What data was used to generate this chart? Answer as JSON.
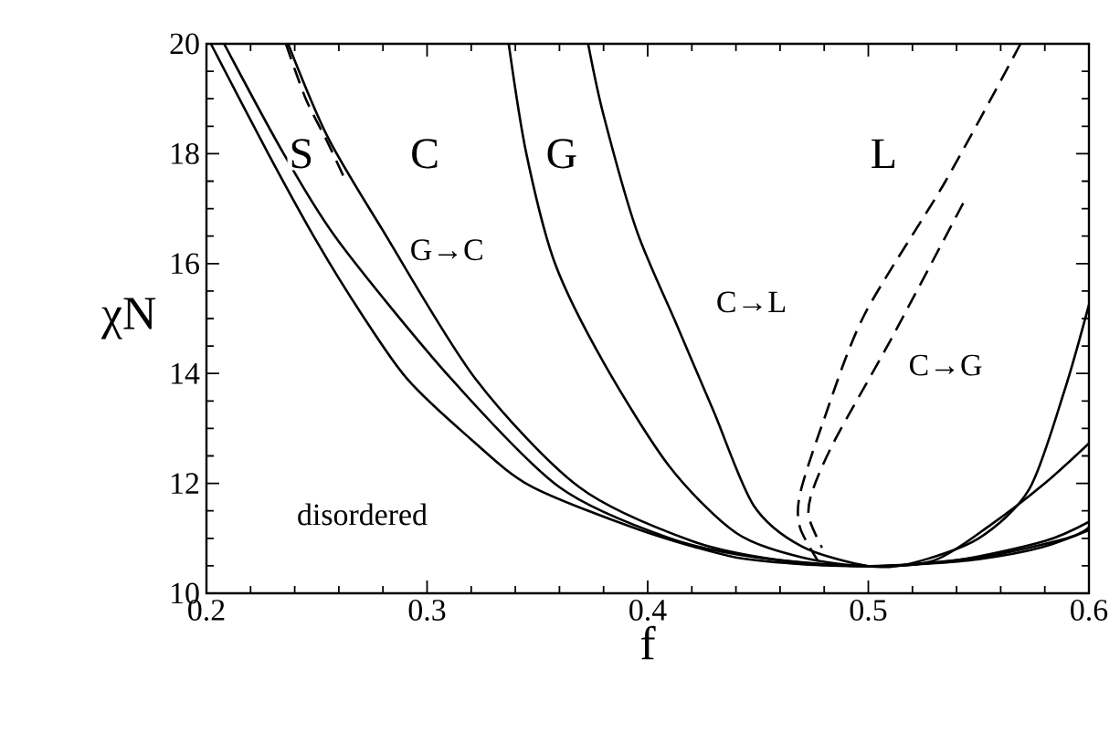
{
  "chart_data": {
    "type": "line",
    "xlabel": "f",
    "ylabel": "χN",
    "xlim": [
      0.2,
      0.6
    ],
    "ylim": [
      10,
      20
    ],
    "xticks": [
      0.2,
      0.3,
      0.4,
      0.5,
      0.6
    ],
    "yticks": [
      10,
      12,
      14,
      16,
      18,
      20
    ],
    "series": [
      {
        "color": "#000000",
        "line_style": "solid",
        "x": [
          0.202,
          0.228,
          0.25,
          0.27,
          0.291,
          0.32,
          0.347,
          0.396,
          0.438,
          0.47,
          0.5,
          0.52,
          0.55,
          0.578,
          0.6
        ],
        "values": [
          20,
          18,
          16.4,
          15.1,
          13.9,
          12.8,
          11.95,
          11.16,
          10.67,
          10.53,
          10.495,
          10.52,
          10.62,
          10.83,
          11.15
        ]
      },
      {
        "color": "#000000",
        "line_style": "solid",
        "x": [
          0.208,
          0.235,
          0.26,
          0.311,
          0.36,
          0.41,
          0.45,
          0.5,
          0.55,
          0.59,
          0.6
        ],
        "values": [
          20,
          18,
          16.4,
          13.9,
          11.93,
          11.0,
          10.65,
          10.495,
          10.65,
          11.0,
          11.2
        ]
      },
      {
        "color": "#000000",
        "line_style": "solid",
        "x": [
          0.237,
          0.255,
          0.28,
          0.322,
          0.369,
          0.42,
          0.46,
          0.5,
          0.54,
          0.58,
          0.6
        ],
        "values": [
          20,
          18.3,
          16.6,
          13.9,
          11.93,
          10.95,
          10.6,
          10.495,
          10.6,
          10.95,
          11.3
        ]
      },
      {
        "color": "#000000",
        "line_style": "solid",
        "x": [
          0.337,
          0.345,
          0.358,
          0.38,
          0.41,
          0.44,
          0.47,
          0.5,
          0.53,
          0.556,
          0.58,
          0.6
        ],
        "values": [
          20,
          18,
          16,
          14.2,
          12.3,
          11.1,
          10.65,
          10.495,
          10.6,
          11.26,
          12.0,
          12.73
        ]
      },
      {
        "color": "#000000",
        "line_style": "solid",
        "x": [
          0.373,
          0.38,
          0.395,
          0.413,
          0.43,
          0.448,
          0.47,
          0.5,
          0.52,
          0.55,
          0.573,
          0.589,
          0.6
        ],
        "values": [
          20,
          18.7,
          16.6,
          14.9,
          13.3,
          11.6,
          10.85,
          10.495,
          10.55,
          11.0,
          11.9,
          13.7,
          15.25
        ]
      },
      {
        "color": "#000000",
        "line_style": "dashed",
        "x": [
          0.236,
          0.245,
          0.255,
          0.262
        ],
        "values": [
          20,
          19,
          18.2,
          17.6
        ]
      },
      {
        "color": "#000000",
        "line_style": "dashed",
        "x": [
          0.569,
          0.535,
          0.498,
          0.479,
          0.469,
          0.469,
          0.477
        ],
        "values": [
          20,
          17.5,
          15.05,
          13.06,
          11.8,
          11.2,
          10.6
        ]
      },
      {
        "color": "#000000",
        "line_style": "dashed",
        "x": [
          0.543,
          0.51,
          0.485,
          0.475,
          0.473,
          0.479
        ],
        "values": [
          17.1,
          14.6,
          12.8,
          11.9,
          11.4,
          10.83
        ]
      }
    ],
    "annotations": [
      {
        "text": "S",
        "x": 0.243,
        "y": 18
      },
      {
        "text": "C",
        "x": 0.299,
        "y": 18
      },
      {
        "text": "G",
        "x": 0.361,
        "y": 18
      },
      {
        "text": "L",
        "x": 0.507,
        "y": 18
      },
      "disordered",
      {
        "text": "G→C",
        "x": 0.309,
        "y": 16.25
      },
      {
        "text": "C→L",
        "x": 0.447,
        "y": 15.3
      },
      {
        "text": "C→G",
        "x": 0.535,
        "y": 14.15
      }
    ]
  }
}
